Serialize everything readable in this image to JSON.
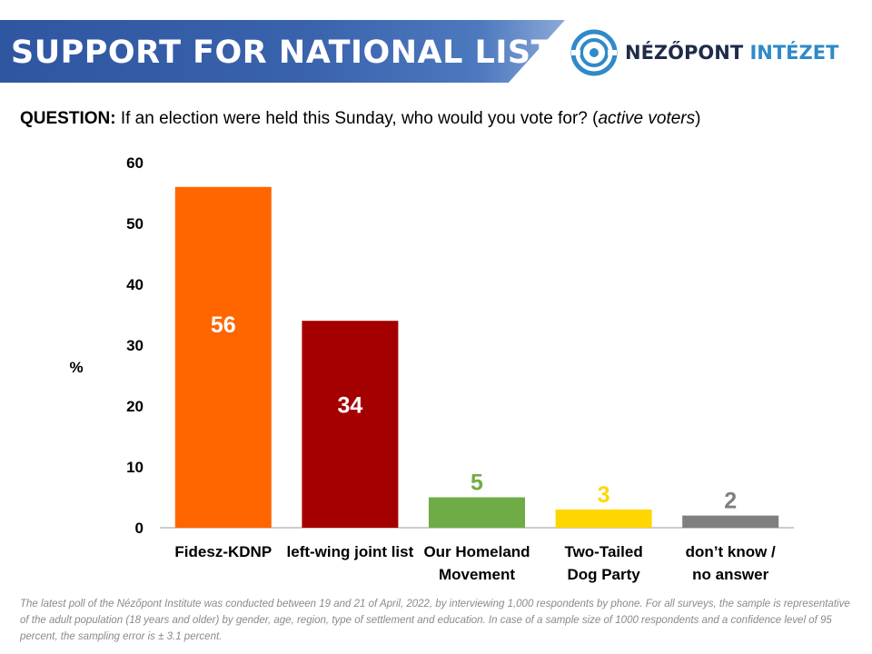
{
  "header": {
    "title": "SUPPORT FOR NATIONAL LISTS",
    "logo_text_a": "NÉZŐPONT",
    "logo_text_b": "INTÉZET",
    "logo_icon": "target-icon"
  },
  "question": {
    "label": "QUESTION:",
    "text": "If an election were held this Sunday, who would you vote for? (",
    "italic": "active voters",
    "close": ")"
  },
  "chart_data": {
    "type": "bar",
    "categories": [
      [
        "Fidesz-KDNP"
      ],
      [
        "left-wing joint list"
      ],
      [
        "Our Homeland",
        "Movement"
      ],
      [
        "Two-Tailed",
        "Dog Party"
      ],
      [
        "don’t know /",
        "no answer"
      ]
    ],
    "values": [
      56,
      34,
      5,
      3,
      2
    ],
    "data_labels": [
      "56",
      "34",
      "5",
      "3",
      "2"
    ],
    "colors": [
      "#ff6600",
      "#a50000",
      "#6fac46",
      "#ffd700",
      "#7f7f7f"
    ],
    "label_colors": [
      "#ffffff",
      "#ffffff",
      "#6fac46",
      "#ffd700",
      "#7f7f7f"
    ],
    "label_placement": [
      "inside",
      "inside",
      "above",
      "above",
      "above"
    ],
    "ylabel": "%",
    "ylim": [
      0,
      60
    ],
    "yticks": [
      "0",
      "10",
      "20",
      "30",
      "40",
      "50",
      "60"
    ],
    "grid": false
  },
  "footnote": "The latest poll of the Nézőpont Institute was conducted between 19 and 21 of April, 2022, by interviewing 1,000 respondents by phone. For all surveys, the sample is representative of the adult population (18 years and older) by gender, age, region, type of settlement and education. In case of a sample size of 1000 respondents and a confidence level of 95 percent, the sampling error is ± 3.1 percent."
}
